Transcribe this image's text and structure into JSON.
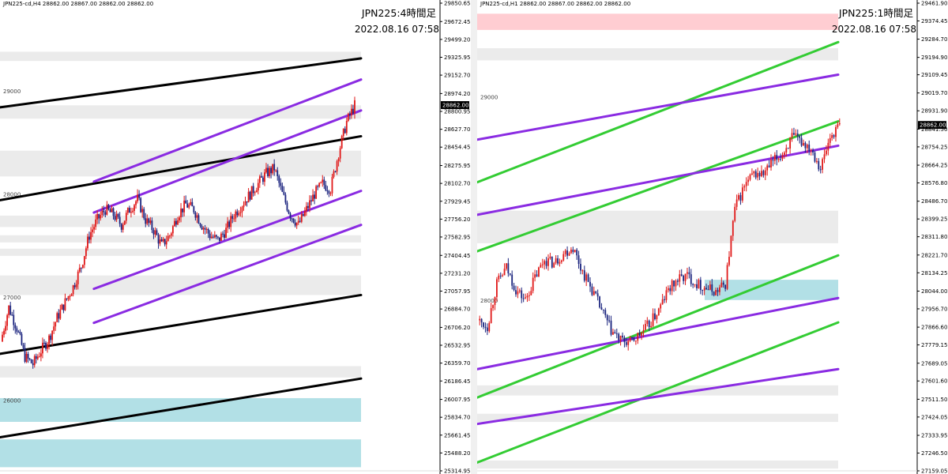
{
  "chart_data": [
    {
      "type": "candlestick",
      "info_line": "JPN225-cd,H4  28862.00 28867.00 28862.00 28862.00",
      "symbol_timeframe": "JPN225:4時間足",
      "datetime": "2022.08.16 07:58",
      "ylim": [
        25314.95,
        29850.65
      ],
      "yticks": [
        "29850.65",
        "29672.45",
        "29499.20",
        "29325.95",
        "29152.70",
        "28974.20",
        "28800.95",
        "28627.70",
        "28454.45",
        "28275.95",
        "28102.70",
        "27929.45",
        "27756.20",
        "27582.95",
        "27404.45",
        "27231.20",
        "27057.95",
        "26884.70",
        "26706.20",
        "26532.95",
        "26359.70",
        "26186.45",
        "26007.95",
        "25834.70",
        "25661.45",
        "25488.20",
        "25314.95"
      ],
      "current_price": "28862.00",
      "level_labels": [
        {
          "text": "29000",
          "value": 29000
        },
        {
          "text": "28000",
          "value": 28000
        },
        {
          "text": "27000",
          "value": 27000
        },
        {
          "text": "26000",
          "value": 26000
        }
      ],
      "zones_gray": [
        [
          29290,
          29380
        ],
        [
          28730,
          28860
        ],
        [
          28170,
          28420
        ],
        [
          27680,
          27790
        ],
        [
          27530,
          27600
        ],
        [
          27400,
          27470
        ],
        [
          27020,
          27210
        ],
        [
          26220,
          26330
        ]
      ],
      "zones_blue": [
        [
          25790,
          26020
        ],
        [
          25350,
          25620
        ]
      ],
      "lines_black": [
        {
          "x": [
            0,
            1
          ],
          "y": [
            28840,
            29315
          ]
        },
        {
          "x": [
            0,
            1
          ],
          "y": [
            27940,
            28560
          ]
        },
        {
          "x": [
            0,
            1
          ],
          "y": [
            26450,
            27020
          ]
        },
        {
          "x": [
            0,
            1
          ],
          "y": [
            25640,
            26210
          ]
        }
      ],
      "lines_purple": [
        {
          "x": [
            0.26,
            1
          ],
          "y": [
            28120,
            29110
          ]
        },
        {
          "x": [
            0.26,
            1
          ],
          "y": [
            27820,
            28810
          ]
        },
        {
          "x": [
            0.26,
            1
          ],
          "y": [
            27080,
            28030
          ]
        },
        {
          "x": [
            0.26,
            1
          ],
          "y": [
            26750,
            27700
          ]
        }
      ],
      "price_path": [
        26570,
        26900,
        26700,
        26420,
        26350,
        26480,
        26600,
        26800,
        26950,
        27100,
        27300,
        27600,
        27750,
        27850,
        27800,
        27700,
        27850,
        27950,
        27750,
        27650,
        27500,
        27600,
        27800,
        27900,
        27850,
        27700,
        27600,
        27550,
        27650,
        27800,
        27900,
        28000,
        28100,
        28200,
        28250,
        28000,
        27800,
        27700,
        27850,
        28000,
        28100,
        28050,
        28400,
        28700,
        28860
      ]
    },
    {
      "type": "candlestick",
      "info_line": "JPN225-cd,H1  28862.00 28867.00 28862.00 28862.00",
      "symbol_timeframe": "JPN225:1時間足",
      "datetime": "2022.08.16 07:58",
      "ylim": [
        27159.05,
        29461.9
      ],
      "yticks": [
        "29461.90",
        "29374.45",
        "29284.70",
        "29194.90",
        "29109.45",
        "29019.70",
        "28931.90",
        "28841.50",
        "28754.25",
        "28664.25",
        "28576.80",
        "28486.70",
        "28399.25",
        "28311.80",
        "28221.70",
        "28134.25",
        "28044.00",
        "27956.70",
        "27866.60",
        "27779.15",
        "27689.05",
        "27601.60",
        "27511.50",
        "27424.05",
        "27333.95",
        "27246.50",
        "27159.05"
      ],
      "current_price": "28862.00",
      "level_labels": [
        {
          "text": "29000",
          "value": 29000
        },
        {
          "text": "28000",
          "value": 28000
        }
      ],
      "zones_gray": [
        [
          29180,
          29240
        ],
        [
          28280,
          28440
        ],
        [
          27530,
          27580
        ],
        [
          27400,
          27440
        ],
        [
          27170,
          27210
        ]
      ],
      "zones_red": [
        [
          29330,
          29410
        ]
      ],
      "zones_blue": [
        [
          28000,
          28100
        ]
      ],
      "lines_green": [
        {
          "x": [
            0,
            1
          ],
          "y": [
            28580,
            29270
          ]
        },
        {
          "x": [
            0,
            1
          ],
          "y": [
            28240,
            28880
          ]
        },
        {
          "x": [
            0,
            1
          ],
          "y": [
            27520,
            28220
          ]
        },
        {
          "x": [
            0,
            1
          ],
          "y": [
            27200,
            27890
          ]
        }
      ],
      "lines_purple": [
        {
          "x": [
            0,
            1
          ],
          "y": [
            28790,
            29110
          ]
        },
        {
          "x": [
            0,
            1
          ],
          "y": [
            28420,
            28760
          ]
        },
        {
          "x": [
            0,
            1
          ],
          "y": [
            27660,
            28010
          ]
        },
        {
          "x": [
            0,
            1
          ],
          "y": [
            27390,
            27660
          ]
        }
      ],
      "price_path": [
        27900,
        27870,
        28080,
        28160,
        28050,
        28000,
        28110,
        28200,
        28180,
        28230,
        28260,
        28140,
        28050,
        27950,
        27850,
        27800,
        27790,
        27830,
        27880,
        27950,
        28050,
        28100,
        28120,
        28080,
        28060,
        28040,
        28080,
        28450,
        28560,
        28620,
        28620,
        28680,
        28720,
        28800,
        28780,
        28750,
        28650,
        28800,
        28862
      ]
    }
  ]
}
